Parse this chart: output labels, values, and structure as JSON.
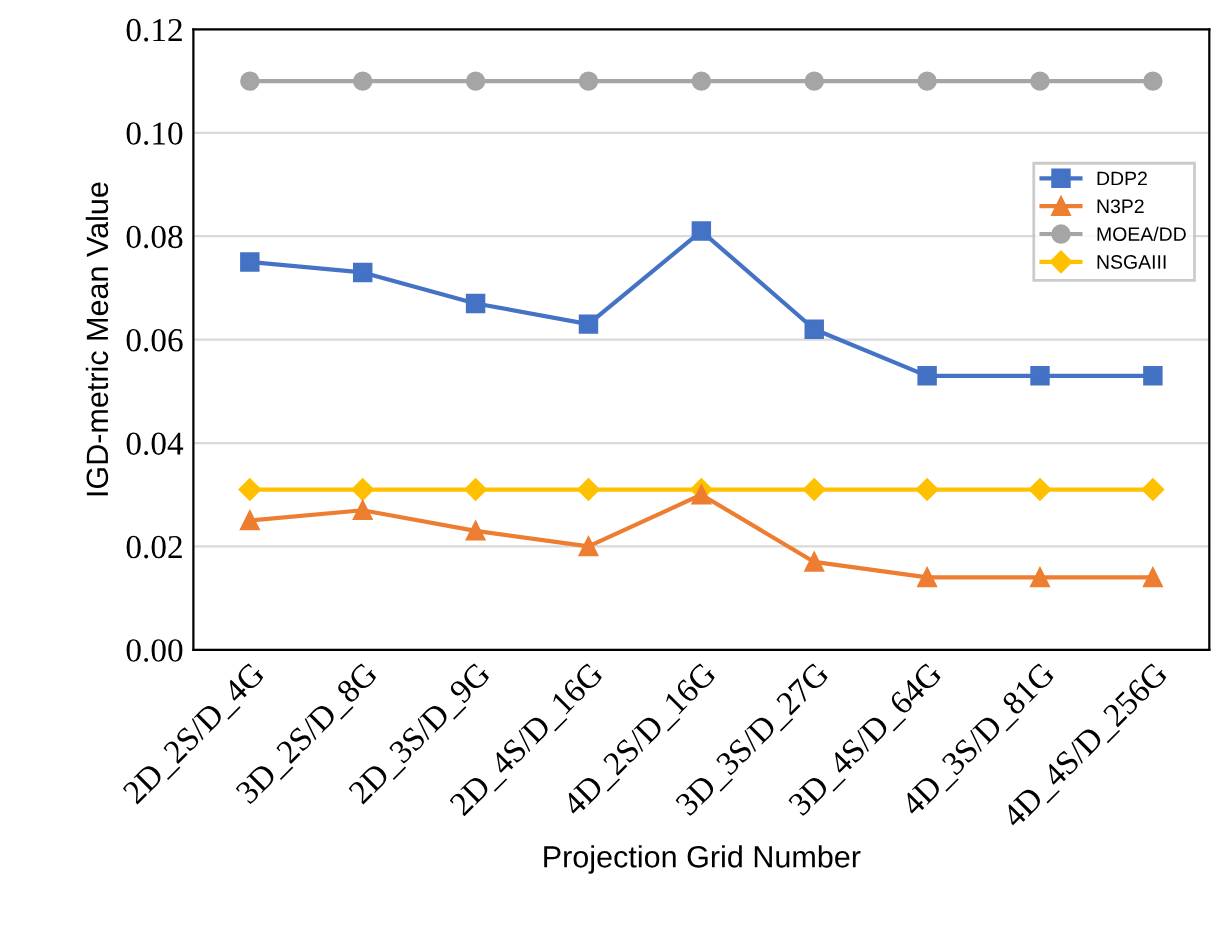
{
  "chart_data": {
    "type": "line",
    "xlabel": "Projection Grid Number",
    "ylabel": "IGD-metric Mean Value",
    "categories": [
      "2D_2S/D_4G",
      "3D_2S/D_8G",
      "2D_3S/D_9G",
      "2D_4S/D_16G",
      "4D_2S/D_16G",
      "3D_3S/D_27G",
      "3D_4S/D_64G",
      "4D_3S/D_81G",
      "4D_4S/D_256G"
    ],
    "series": [
      {
        "name": "DDP2",
        "color": "#4472c4",
        "marker": "square",
        "values": [
          0.075,
          0.073,
          0.067,
          0.063,
          0.081,
          0.062,
          0.053,
          0.053,
          0.053
        ]
      },
      {
        "name": "N3P2",
        "color": "#ed7d31",
        "marker": "triangle",
        "values": [
          0.025,
          0.027,
          0.023,
          0.02,
          0.03,
          0.017,
          0.014,
          0.014,
          0.014
        ]
      },
      {
        "name": "MOEA/DD",
        "color": "#a5a5a5",
        "marker": "circle",
        "values": [
          0.11,
          0.11,
          0.11,
          0.11,
          0.11,
          0.11,
          0.11,
          0.11,
          0.11
        ]
      },
      {
        "name": "NSGAIII",
        "color": "#ffc000",
        "marker": "diamond",
        "values": [
          0.031,
          0.031,
          0.031,
          0.031,
          0.031,
          0.031,
          0.031,
          0.031,
          0.031
        ]
      }
    ],
    "ylim": [
      0,
      0.12
    ],
    "yticks": [
      {
        "value": 0,
        "label": "0.00"
      },
      {
        "value": 0.02,
        "label": "0.02"
      },
      {
        "value": 0.04,
        "label": "0.04"
      },
      {
        "value": 0.06,
        "label": "0.06"
      },
      {
        "value": 0.08,
        "label": "0.08"
      },
      {
        "value": 0.1,
        "label": "0.10"
      },
      {
        "value": 0.12,
        "label": "0.12"
      }
    ],
    "grid": "y",
    "legend": "top right",
    "line_style": "solid"
  }
}
